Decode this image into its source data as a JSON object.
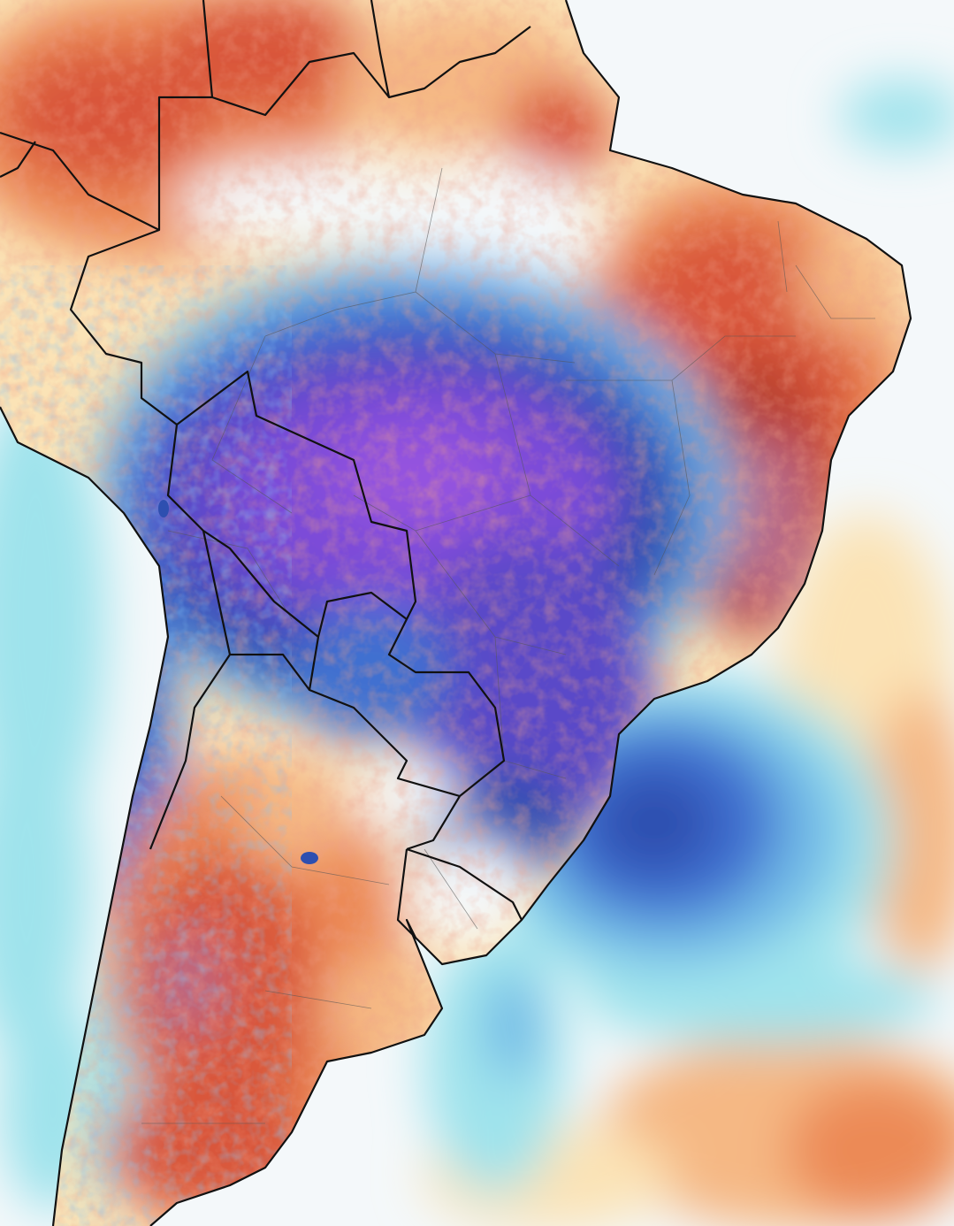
{
  "map": {
    "type": "temperature-anomaly",
    "region": "South America",
    "legend": null,
    "labels": []
  },
  "palette": {
    "ocean_white": "#f4f8fa",
    "ocean_cyan": "#9fe3ec",
    "ocean_light_blue": "#6fb8e6",
    "cold_blue": "#3f6fd0",
    "cold_deep_blue": "#2e4fb0",
    "cold_indigo": "#5a49c8",
    "cold_purple": "#7c4bd8",
    "cold_violet": "#9452df",
    "warm_cream": "#fbe3b6",
    "warm_peach": "#f5b884",
    "warm_orange": "#ec8a57",
    "warm_red": "#d9573a",
    "warm_dark_red": "#b8412e",
    "warm_magenta": "#b86a88",
    "border": "#111111",
    "state_line": "#555555"
  }
}
